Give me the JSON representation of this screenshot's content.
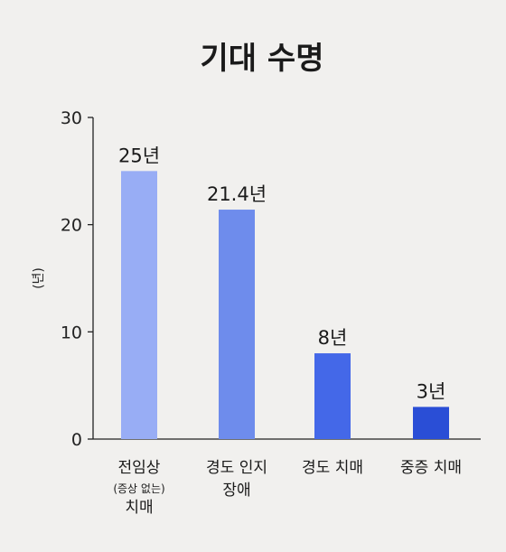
{
  "chart_data": {
    "type": "bar",
    "title": "기대 수명",
    "ylabel": "(년)",
    "xlabel": "",
    "ylim": [
      0,
      30
    ],
    "yticks": [
      0,
      10,
      20,
      30
    ],
    "grid": false,
    "categories": [
      [
        "전임상",
        "(증상 없는)",
        "치매"
      ],
      [
        "경도 인지",
        "장애"
      ],
      [
        "경도 치매"
      ],
      [
        "중증 치매"
      ]
    ],
    "values": [
      25,
      21.4,
      8,
      3
    ],
    "data_labels": [
      "25년",
      "21.4년",
      "8년",
      "3년"
    ],
    "colors": [
      "#98adf5",
      "#6e8cec",
      "#4468e8",
      "#2a4ed6"
    ]
  }
}
